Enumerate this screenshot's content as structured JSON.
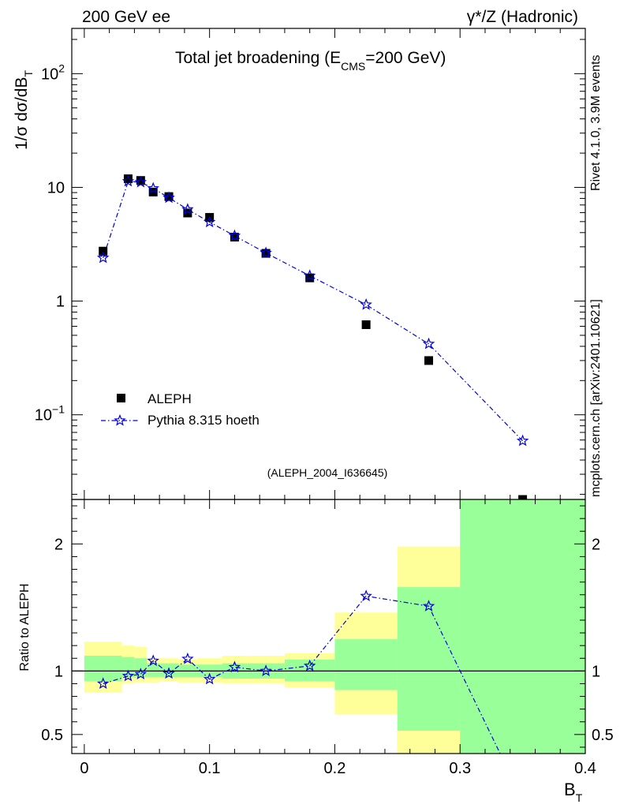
{
  "header": {
    "left": "200 GeV ee",
    "right": "γ*/Z (Hadronic)"
  },
  "side": {
    "rivet": "Rivet 4.1.0,  3.9M events",
    "mcplots": "mcplots.cern.ch [arXiv:2401.10621]"
  },
  "chart_data": {
    "type": "scatter",
    "title_main": "Total jet broadening (E",
    "title_sub": "CMS",
    "title_rest": "=200 GeV)",
    "analysis_id": "(ALEPH_2004_I636645)",
    "ylabel": "1/σ  dσ/dB",
    "ylabel_sub": "T",
    "xlabel": "B",
    "xlabel_sub": "T",
    "ratio_ylabel": "Ratio to ALEPH",
    "x_range": [
      -0.01,
      0.4
    ],
    "y_range_log": [
      0.018,
      250
    ],
    "ratio_range": [
      0.35,
      2.35
    ],
    "x_ticks": [
      {
        "v": 0,
        "label": "0"
      },
      {
        "v": 0.1,
        "label": "0.1"
      },
      {
        "v": 0.2,
        "label": "0.2"
      },
      {
        "v": 0.3,
        "label": "0.3"
      },
      {
        "v": 0.4,
        "label": "0.4"
      }
    ],
    "y_ticks": [
      {
        "v": 100,
        "base": "10",
        "exp": "2"
      },
      {
        "v": 10,
        "base": "10",
        "exp": ""
      },
      {
        "v": 1,
        "base": "1",
        "exp": ""
      },
      {
        "v": 0.1,
        "base": "10",
        "exp": "−1"
      }
    ],
    "ratio_ticks": [
      {
        "v": 0.5,
        "label": "0.5"
      },
      {
        "v": 1,
        "label": "1"
      },
      {
        "v": 2,
        "label": "2"
      }
    ],
    "legend": {
      "data_label": "ALEPH",
      "mc_label": "Pythia 8.315 hoeth"
    },
    "data": [
      {
        "x": 0.015,
        "y": 2.75
      },
      {
        "x": 0.035,
        "y": 11.9
      },
      {
        "x": 0.045,
        "y": 11.5
      },
      {
        "x": 0.055,
        "y": 9.1
      },
      {
        "x": 0.0675,
        "y": 8.3
      },
      {
        "x": 0.0825,
        "y": 5.95
      },
      {
        "x": 0.1,
        "y": 5.45
      },
      {
        "x": 0.12,
        "y": 3.65
      },
      {
        "x": 0.145,
        "y": 2.63
      },
      {
        "x": 0.18,
        "y": 1.6
      },
      {
        "x": 0.225,
        "y": 0.62
      },
      {
        "x": 0.275,
        "y": 0.3
      },
      {
        "x": 0.35,
        "y": 0.018
      }
    ],
    "mc": [
      {
        "x": 0.015,
        "y": 2.4
      },
      {
        "x": 0.035,
        "y": 11.3
      },
      {
        "x": 0.045,
        "y": 11.1
      },
      {
        "x": 0.055,
        "y": 9.8
      },
      {
        "x": 0.0675,
        "y": 8.1
      },
      {
        "x": 0.0825,
        "y": 6.4
      },
      {
        "x": 0.1,
        "y": 4.95
      },
      {
        "x": 0.12,
        "y": 3.75
      },
      {
        "x": 0.145,
        "y": 2.65
      },
      {
        "x": 0.18,
        "y": 1.67
      },
      {
        "x": 0.225,
        "y": 0.93
      },
      {
        "x": 0.275,
        "y": 0.42
      },
      {
        "x": 0.35,
        "y": 0.059
      }
    ],
    "ratio": [
      {
        "x": 0.015,
        "y": 0.9
      },
      {
        "x": 0.035,
        "y": 0.96
      },
      {
        "x": 0.045,
        "y": 0.975
      },
      {
        "x": 0.055,
        "y": 1.08
      },
      {
        "x": 0.0675,
        "y": 0.98
      },
      {
        "x": 0.0825,
        "y": 1.095
      },
      {
        "x": 0.1,
        "y": 0.935
      },
      {
        "x": 0.12,
        "y": 1.03
      },
      {
        "x": 0.145,
        "y": 1.0
      },
      {
        "x": 0.18,
        "y": 1.04
      },
      {
        "x": 0.225,
        "y": 1.59
      },
      {
        "x": 0.275,
        "y": 1.51
      },
      {
        "x": 0.333,
        "y": 0.33
      }
    ],
    "bands": [
      {
        "x0": 0.0,
        "x1": 0.03,
        "y_lo": 0.83,
        "y_hi": 1.23,
        "g_lo": 0.92,
        "g_hi": 1.12
      },
      {
        "x0": 0.03,
        "x1": 0.04,
        "y_lo": 0.9,
        "y_hi": 1.2,
        "g_lo": 0.95,
        "g_hi": 1.11
      },
      {
        "x0": 0.04,
        "x1": 0.05,
        "y_lo": 0.91,
        "y_hi": 1.19,
        "g_lo": 0.95,
        "g_hi": 1.1
      },
      {
        "x0": 0.05,
        "x1": 0.06,
        "y_lo": 0.91,
        "y_hi": 1.09,
        "g_lo": 0.95,
        "g_hi": 1.06
      },
      {
        "x0": 0.06,
        "x1": 0.075,
        "y_lo": 0.92,
        "y_hi": 1.1,
        "g_lo": 0.95,
        "g_hi": 1.06
      },
      {
        "x0": 0.075,
        "x1": 0.09,
        "y_lo": 0.91,
        "y_hi": 1.09,
        "g_lo": 0.95,
        "g_hi": 1.05
      },
      {
        "x0": 0.09,
        "x1": 0.11,
        "y_lo": 0.91,
        "y_hi": 1.1,
        "g_lo": 0.95,
        "g_hi": 1.05
      },
      {
        "x0": 0.11,
        "x1": 0.13,
        "y_lo": 0.9,
        "y_hi": 1.12,
        "g_lo": 0.94,
        "g_hi": 1.06
      },
      {
        "x0": 0.13,
        "x1": 0.16,
        "y_lo": 0.9,
        "y_hi": 1.12,
        "g_lo": 0.94,
        "g_hi": 1.06
      },
      {
        "x0": 0.16,
        "x1": 0.2,
        "y_lo": 0.87,
        "y_hi": 1.14,
        "g_lo": 0.92,
        "g_hi": 1.09
      },
      {
        "x0": 0.2,
        "x1": 0.25,
        "y_lo": 0.66,
        "y_hi": 1.46,
        "g_lo": 0.85,
        "g_hi": 1.25
      },
      {
        "x0": 0.25,
        "x1": 0.3,
        "y_lo": 0.35,
        "y_hi": 1.98,
        "g_lo": 0.35,
        "g_hi": 1.66,
        "gap_lo": 0.53,
        "gap_hi": 1.66
      },
      {
        "x0": 0.3,
        "x1": 0.4,
        "y_lo": 0.35,
        "y_hi": 2.35,
        "g_lo": 0.35,
        "g_hi": 2.35
      }
    ],
    "colors": {
      "data": "#000000",
      "mc": "#0000dd",
      "band_yellow": "#ffff99",
      "band_green": "#99ff99",
      "side_text": "#888888",
      "analysis_text": "#888888"
    }
  }
}
